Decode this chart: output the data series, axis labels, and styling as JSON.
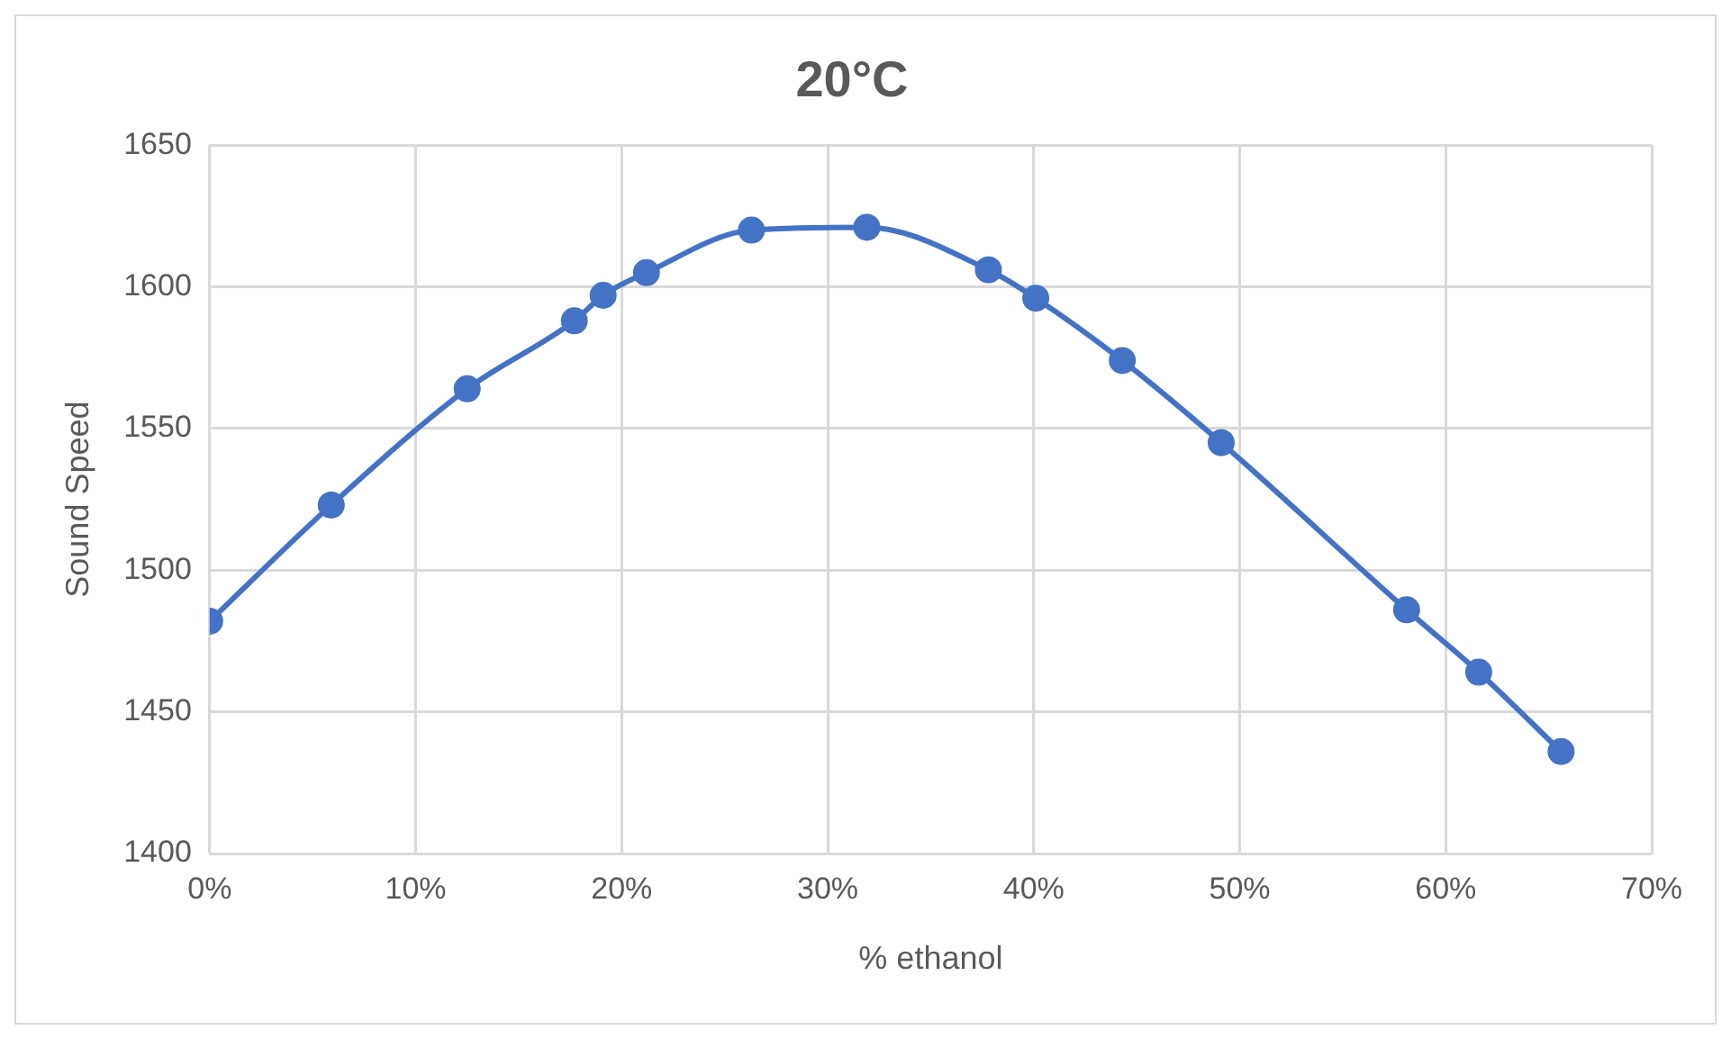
{
  "chart_data": {
    "type": "line",
    "title": "20°C",
    "xlabel": "% ethanol",
    "ylabel": "Sound Speed",
    "x": [
      0,
      5.9,
      12.5,
      17.7,
      19.1,
      21.2,
      26.3,
      31.9,
      37.8,
      40.1,
      44.3,
      49.1,
      58.1,
      61.6,
      65.6
    ],
    "series": [
      {
        "color": "#4472c4",
        "values": [
          1482,
          1523,
          1564,
          1588,
          1597,
          1605,
          1620,
          1621,
          1606,
          1596,
          1574,
          1545,
          1486,
          1464,
          1436
        ]
      }
    ],
    "xlim": [
      0,
      70
    ],
    "xticks": [
      {
        "value": 0,
        "label": "0%"
      },
      {
        "value": 10,
        "label": "10%"
      },
      {
        "value": 20,
        "label": "20%"
      },
      {
        "value": 30,
        "label": "30%"
      },
      {
        "value": 40,
        "label": "40%"
      },
      {
        "value": 50,
        "label": "50%"
      },
      {
        "value": 60,
        "label": "60%"
      },
      {
        "value": 70,
        "label": "70%"
      }
    ],
    "ylim": [
      1400,
      1650
    ],
    "yticks": [
      1400,
      1450,
      1500,
      1550,
      1600,
      1650
    ],
    "grid": true,
    "legend": false,
    "marker": "circle",
    "line_style": "solid"
  }
}
